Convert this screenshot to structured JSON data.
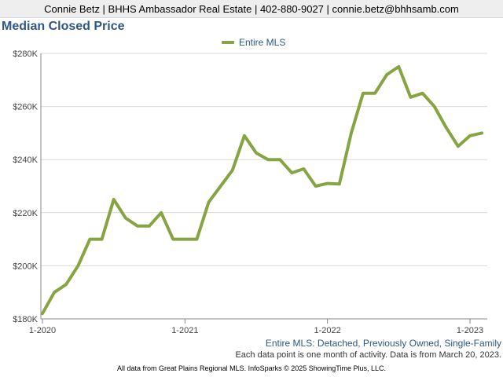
{
  "header": {
    "contact": "Connie Betz | BHHS Ambassador Real Estate | 402-880-9027 | connie.betz@bhhsamb.com"
  },
  "colors": {
    "series": "#86a542",
    "title": "#2f5785",
    "grid": "#d9d9d9",
    "axis": "#888888"
  },
  "chart_data": {
    "type": "line",
    "title": "Median Closed Price",
    "legend_position": "top-center",
    "grid": true,
    "ylim": [
      180000,
      280000
    ],
    "y_ticks": [
      180000,
      200000,
      220000,
      240000,
      260000,
      280000
    ],
    "y_tick_labels": [
      "$180K",
      "$200K",
      "$220K",
      "$240K",
      "$260K",
      "$280K"
    ],
    "x_tick_labels": [
      "1-2020",
      "1-2021",
      "1-2022",
      "1-2023"
    ],
    "x_tick_indices": [
      0,
      12,
      24,
      36
    ],
    "x": [
      "1-2020",
      "2-2020",
      "3-2020",
      "4-2020",
      "5-2020",
      "6-2020",
      "7-2020",
      "8-2020",
      "9-2020",
      "10-2020",
      "11-2020",
      "12-2020",
      "1-2021",
      "2-2021",
      "3-2021",
      "4-2021",
      "5-2021",
      "6-2021",
      "7-2021",
      "8-2021",
      "9-2021",
      "10-2021",
      "11-2021",
      "12-2021",
      "1-2022",
      "2-2022",
      "3-2022",
      "4-2022",
      "5-2022",
      "6-2022",
      "7-2022",
      "8-2022",
      "9-2022",
      "10-2022",
      "11-2022",
      "12-2022",
      "1-2023",
      "2-2023"
    ],
    "series": [
      {
        "name": "Entire MLS",
        "values": [
          182000,
          190000,
          193000,
          200000,
          210000,
          210000,
          225000,
          218000,
          215000,
          215000,
          220000,
          210000,
          210000,
          210000,
          224000,
          230000,
          236000,
          249000,
          242500,
          240000,
          240000,
          235000,
          236500,
          230000,
          231000,
          230800,
          250000,
          265000,
          265000,
          272000,
          275000,
          263500,
          265000,
          260000,
          252000,
          245000,
          249000,
          250000
        ]
      }
    ]
  },
  "notes": {
    "line1": "Entire MLS: Detached, Previously Owned, Single-Family",
    "line2": "Each data point is one month of activity. Data is from March 20, 2023."
  },
  "footer": "All data from Great Plains Regional MLS. InfoSparks © 2025 ShowingTime Plus, LLC."
}
